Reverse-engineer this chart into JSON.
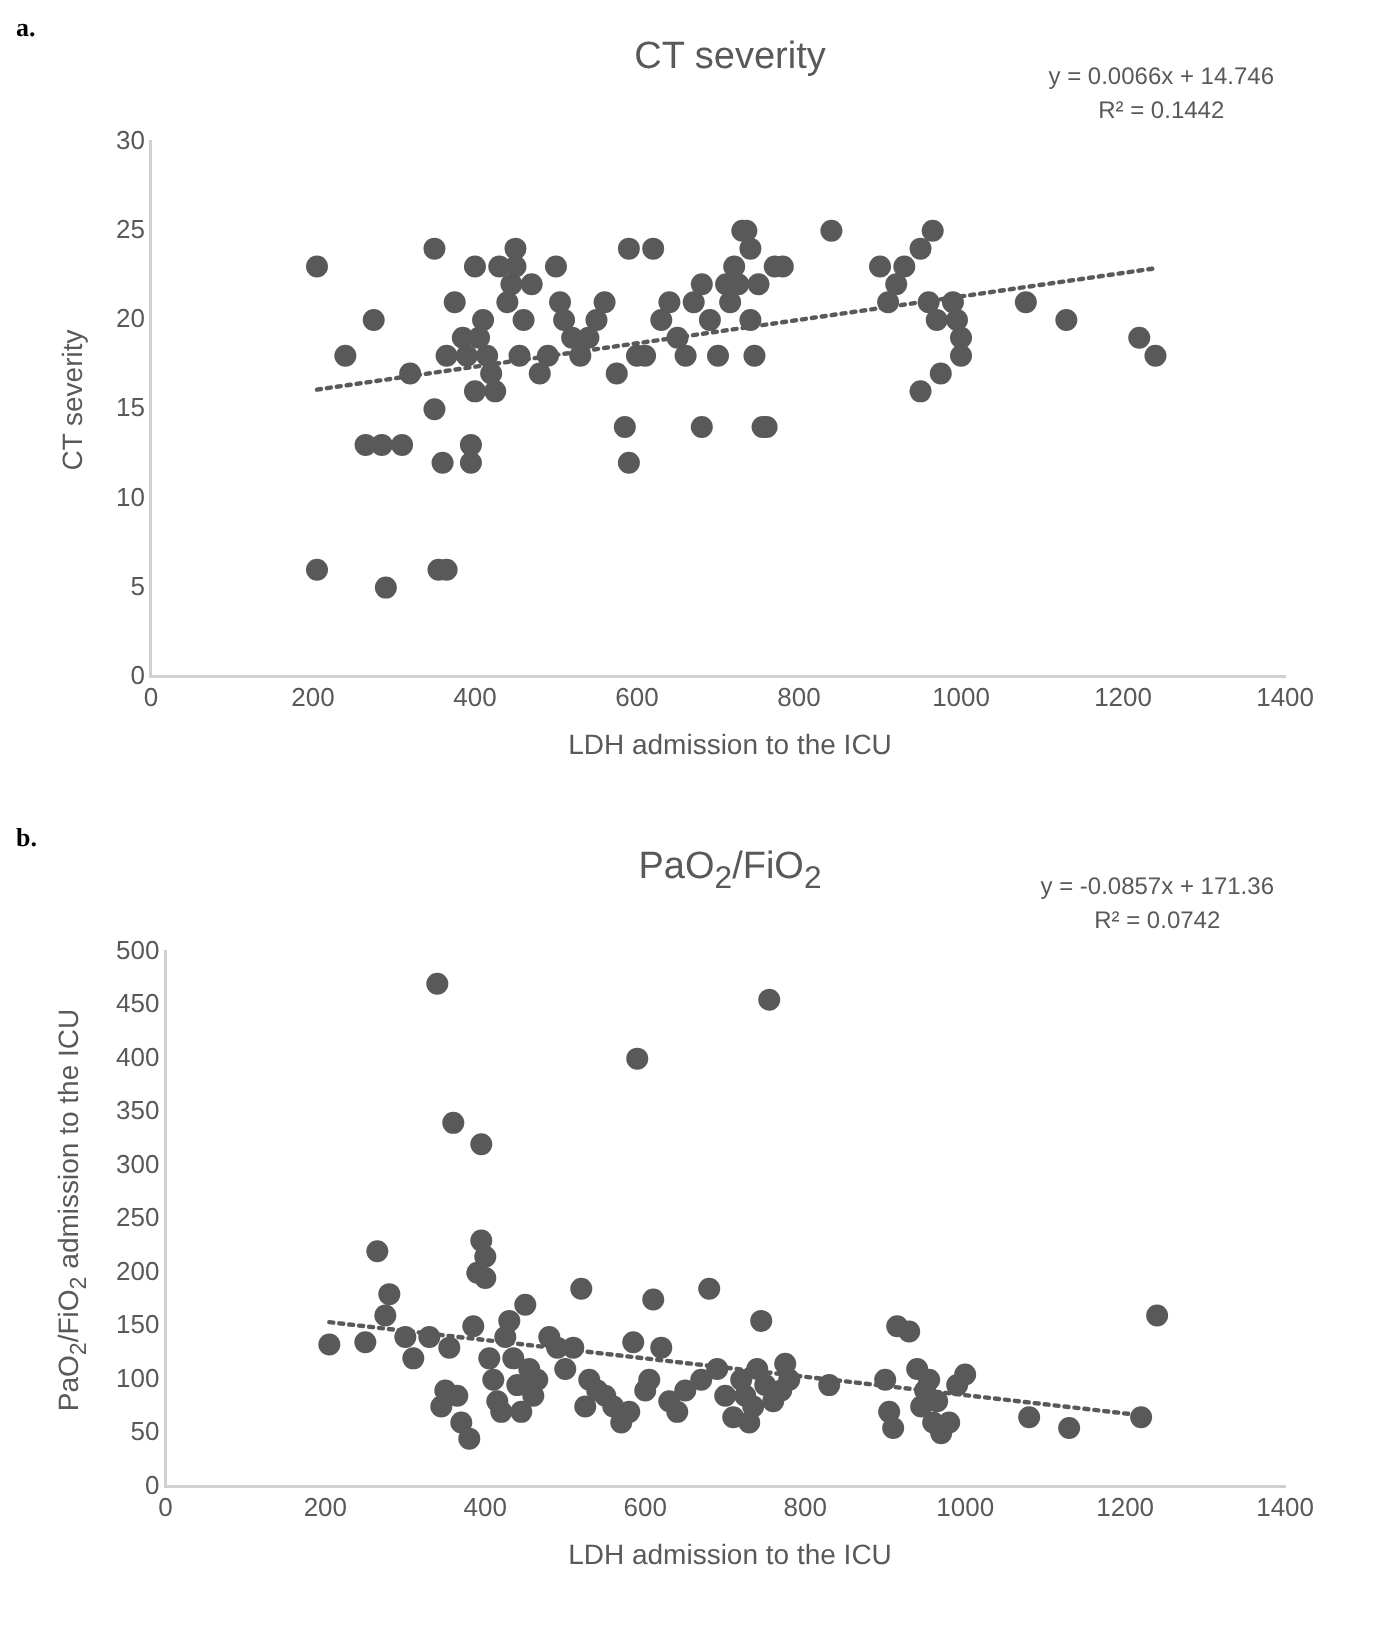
{
  "chart_data": [
    {
      "type": "scatter",
      "title": "CT severity",
      "xlabel": "LDH admission to the ICU",
      "ylabel": "CT severity",
      "annotations": [
        "a.",
        "y = 0.0066x + 14.746",
        "R² = 0.1442"
      ],
      "xlim": [
        0,
        1400
      ],
      "xticks": [
        0,
        200,
        400,
        600,
        800,
        1000,
        1200,
        1400
      ],
      "ylim": [
        0,
        30
      ],
      "yticks": [
        0,
        5,
        10,
        15,
        20,
        25,
        30
      ],
      "grid": false,
      "legend": false,
      "marker": "circle",
      "series": [
        {
          "color": "#595959",
          "x": [
            205,
            205,
            240,
            265,
            275,
            285,
            290,
            310,
            320,
            350,
            350,
            355,
            365,
            360,
            365,
            375,
            385,
            390,
            395,
            395,
            400,
            400,
            405,
            410,
            415,
            420,
            425,
            430,
            440,
            445,
            450,
            450,
            455,
            460,
            470,
            480,
            490,
            500,
            505,
            510,
            520,
            530,
            540,
            550,
            560,
            575,
            585,
            590,
            590,
            600,
            610,
            620,
            630,
            640,
            650,
            660,
            670,
            680,
            680,
            690,
            700,
            710,
            715,
            720,
            725,
            730,
            735,
            740,
            740,
            745,
            750,
            755,
            760,
            770,
            780,
            840,
            900,
            910,
            920,
            930,
            950,
            950,
            960,
            965,
            970,
            975,
            990,
            995,
            1000,
            1000,
            1080,
            1130,
            1220,
            1240
          ],
          "values": [
            23,
            6,
            18,
            13,
            20,
            13,
            5,
            13,
            17,
            15,
            24,
            6,
            6,
            12,
            18,
            21,
            19,
            18,
            13,
            12,
            16,
            23,
            19,
            20,
            18,
            17,
            16,
            23,
            21,
            22,
            24,
            23,
            18,
            20,
            22,
            17,
            18,
            23,
            21,
            20,
            19,
            18,
            19,
            20,
            21,
            17,
            14,
            12,
            24,
            18,
            18,
            24,
            20,
            21,
            19,
            18,
            21,
            14,
            22,
            20,
            18,
            22,
            21,
            23,
            22,
            25,
            25,
            24,
            20,
            18,
            22,
            14,
            14,
            23,
            23,
            25,
            23,
            21,
            22,
            23,
            24,
            16,
            21,
            25,
            20,
            17,
            21,
            20,
            19,
            18,
            21,
            20,
            19,
            18
          ]
        },
        {
          "type": "line",
          "line_style": "dotted",
          "marker": "none",
          "color": "#595959",
          "x": [
            205,
            1240
          ],
          "values": [
            16.1,
            22.9
          ]
        }
      ]
    },
    {
      "type": "scatter",
      "title": "PaO$_{2}$/FiO$_{2}$",
      "xlabel": "LDH admission to the ICU",
      "ylabel": "PaO$_{2}$/FiO$_{2}$ admission to the ICU",
      "annotations": [
        "b.",
        "y = -0.0857x + 171.36",
        "R² = 0.0742"
      ],
      "xlim": [
        0,
        1400
      ],
      "xticks": [
        0,
        200,
        400,
        600,
        800,
        1000,
        1200,
        1400
      ],
      "ylim": [
        0,
        500
      ],
      "yticks": [
        0,
        50,
        100,
        150,
        200,
        250,
        300,
        350,
        400,
        450,
        500
      ],
      "grid": false,
      "legend": false,
      "marker": "circle",
      "series": [
        {
          "color": "#595959",
          "x": [
            205,
            250,
            265,
            275,
            280,
            300,
            310,
            330,
            340,
            345,
            350,
            355,
            360,
            365,
            370,
            380,
            385,
            390,
            395,
            395,
            400,
            400,
            405,
            410,
            415,
            420,
            425,
            430,
            435,
            440,
            445,
            450,
            455,
            460,
            465,
            480,
            490,
            500,
            510,
            520,
            525,
            530,
            540,
            550,
            560,
            570,
            580,
            585,
            590,
            600,
            605,
            610,
            620,
            630,
            640,
            650,
            670,
            680,
            690,
            700,
            710,
            720,
            725,
            730,
            735,
            740,
            745,
            750,
            755,
            760,
            770,
            775,
            780,
            830,
            900,
            905,
            910,
            915,
            930,
            940,
            945,
            950,
            955,
            960,
            965,
            970,
            980,
            990,
            1000,
            1080,
            1130,
            1220,
            1240
          ],
          "values": [
            133,
            135,
            220,
            160,
            180,
            140,
            120,
            140,
            470,
            75,
            90,
            130,
            340,
            85,
            60,
            45,
            150,
            200,
            320,
            230,
            215,
            195,
            120,
            100,
            80,
            70,
            140,
            155,
            120,
            95,
            70,
            170,
            110,
            85,
            100,
            140,
            130,
            110,
            130,
            185,
            75,
            100,
            90,
            85,
            75,
            60,
            70,
            135,
            400,
            90,
            100,
            175,
            130,
            80,
            70,
            90,
            100,
            185,
            110,
            85,
            65,
            100,
            85,
            60,
            75,
            110,
            155,
            95,
            455,
            80,
            90,
            115,
            100,
            95,
            100,
            70,
            55,
            150,
            145,
            110,
            75,
            90,
            100,
            60,
            80,
            50,
            60,
            95,
            105,
            65,
            55,
            65,
            160
          ]
        },
        {
          "type": "line",
          "line_style": "dotted",
          "marker": "none",
          "color": "#595959",
          "x": [
            205,
            1220
          ],
          "values": [
            153.8,
            66.8
          ]
        }
      ]
    }
  ]
}
